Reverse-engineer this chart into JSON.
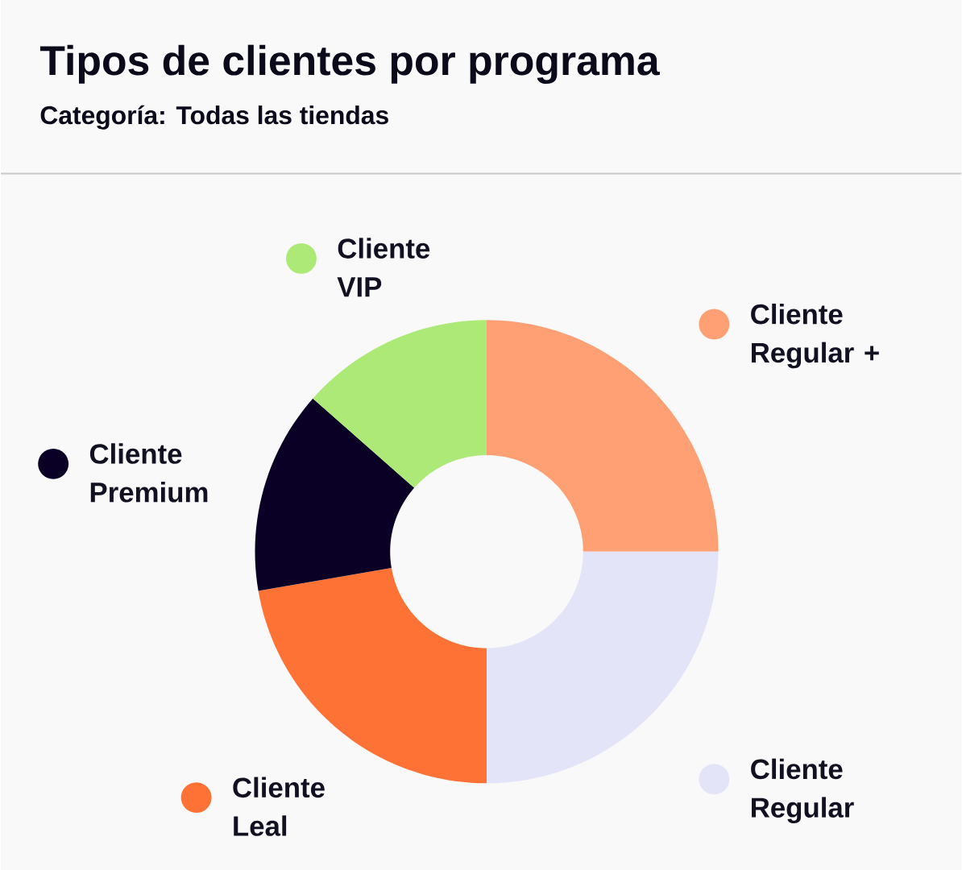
{
  "chart_data": {
    "type": "donut",
    "title": "Tipos de clientes por programa",
    "subtitle": "Categoría: Todas las tiendas",
    "categories": [
      "Cliente Regular +",
      "Cliente Regular",
      "Cliente Leal",
      "Cliente Premium",
      "Cliente VIP"
    ],
    "values": [
      25,
      25,
      22.3,
      14.2,
      13.5
    ],
    "colors": [
      "#ff9f74",
      "#e4e4f8",
      "#ff7236",
      "#0a0026",
      "#ace976"
    ],
    "legend": "top left"
  }
}
